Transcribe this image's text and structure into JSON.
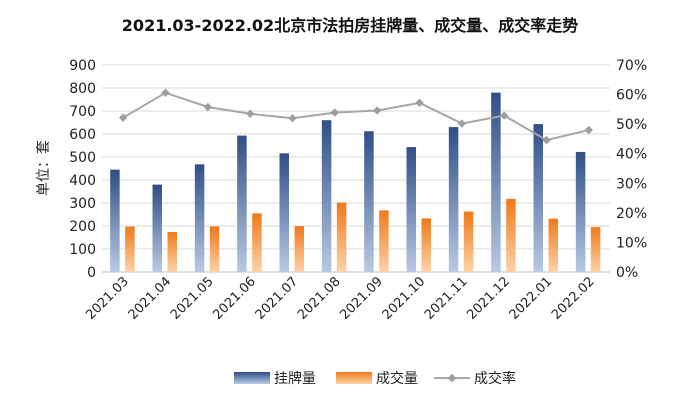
{
  "chart_data": {
    "type": "bar",
    "title": "2021.03-2022.02北京市法拍房挂牌量、成交量、成交率走势",
    "ylabel": "单位：套",
    "xlabel": "",
    "categories": [
      "2021.03",
      "2021.04",
      "2021.05",
      "2021.06",
      "2021.07",
      "2021.08",
      "2021.09",
      "2021.10",
      "2021.11",
      "2021.12",
      "2022.01",
      "2022.02"
    ],
    "y_ticks": [
      "0",
      "100",
      "200",
      "300",
      "400",
      "500",
      "600",
      "700",
      "800",
      "900"
    ],
    "y2_ticks": [
      "0%",
      "10%",
      "20%",
      "30%",
      "40%",
      "50%",
      "60%",
      "70%"
    ],
    "ylim": [
      0,
      900
    ],
    "y2lim": [
      0,
      70
    ],
    "grid": true,
    "legend_position": "bottom",
    "series": [
      {
        "name": "挂牌量",
        "type": "bar",
        "color": "#4a6a9e",
        "values": [
          445,
          380,
          468,
          593,
          516,
          660,
          612,
          543,
          630,
          780,
          643,
          522
        ]
      },
      {
        "name": "成交量",
        "type": "bar",
        "color": "#f28b2c",
        "values": [
          197,
          174,
          198,
          255,
          199,
          302,
          268,
          233,
          263,
          318,
          232,
          195
        ]
      },
      {
        "name": "成交率",
        "type": "line",
        "axis": "right",
        "color": "#a6a6a6",
        "values": [
          52.2,
          60.6,
          55.8,
          53.5,
          52.0,
          53.9,
          54.6,
          57.2,
          50.2,
          52.9,
          44.6,
          48.0
        ]
      }
    ]
  }
}
